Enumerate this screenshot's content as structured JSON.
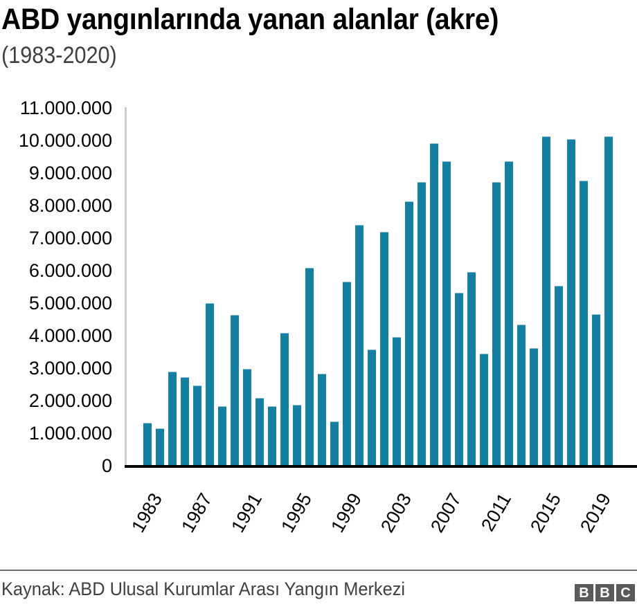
{
  "header": {
    "title": "ABD yangınlarında yanan alanlar (akre)",
    "subtitle": "(1983-2020)"
  },
  "footer": {
    "source": "Kaynak: ABD Ulusal Kurumlar Arası Yangın Merkezi",
    "logo_letters": [
      "B",
      "B",
      "C"
    ]
  },
  "colors": {
    "bar": "#1380A1",
    "axis_baseline": "#000000",
    "axis_left": "#cccccc",
    "footer_line": "#707070",
    "logo_box": "#5a5a5a"
  },
  "chart_data": {
    "type": "bar",
    "title": "ABD yangınlarında yanan alanlar (akre)",
    "subtitle": "(1983-2020)",
    "xlabel": "",
    "ylabel": "",
    "ylim": [
      0,
      11000000
    ],
    "yticks": [
      0,
      1000000,
      2000000,
      3000000,
      4000000,
      5000000,
      6000000,
      7000000,
      8000000,
      9000000,
      10000000,
      11000000
    ],
    "ytick_labels": [
      "0",
      "1.000.000",
      "2.000.000",
      "3.000.000",
      "4.000.000",
      "5.000.000",
      "6.000.000",
      "7.000.000",
      "8.000.000",
      "9.000.000",
      "10.000.000",
      "11.000.000"
    ],
    "xtick_labels": [
      "1983",
      "1987",
      "1991",
      "1995",
      "1999",
      "2003",
      "2007",
      "2011",
      "2015",
      "2019"
    ],
    "grid": false,
    "legend": null,
    "source": "Kaynak: ABD Ulusal Kurumlar Arası Yangın Merkezi",
    "categories": [
      "1983",
      "1984",
      "1985",
      "1986",
      "1987",
      "1988",
      "1989",
      "1990",
      "1991",
      "1992",
      "1993",
      "1994",
      "1995",
      "1996",
      "1997",
      "1998",
      "1999",
      "2000",
      "2001",
      "2002",
      "2003",
      "2004",
      "2005",
      "2006",
      "2007",
      "2008",
      "2009",
      "2010",
      "2011",
      "2012",
      "2013",
      "2014",
      "2015",
      "2016",
      "2017",
      "2018",
      "2019",
      "2020"
    ],
    "values": [
      1310000,
      1140000,
      2890000,
      2720000,
      2460000,
      5010000,
      1820000,
      4630000,
      2970000,
      2080000,
      1820000,
      4080000,
      1870000,
      6080000,
      2840000,
      1360000,
      5650000,
      7400000,
      3570000,
      7190000,
      3950000,
      8120000,
      8720000,
      9910000,
      9360000,
      5310000,
      5950000,
      3440000,
      8720000,
      9360000,
      4330000,
      3610000,
      10120000,
      5530000,
      10040000,
      8760000,
      4670000,
      10120000
    ]
  }
}
